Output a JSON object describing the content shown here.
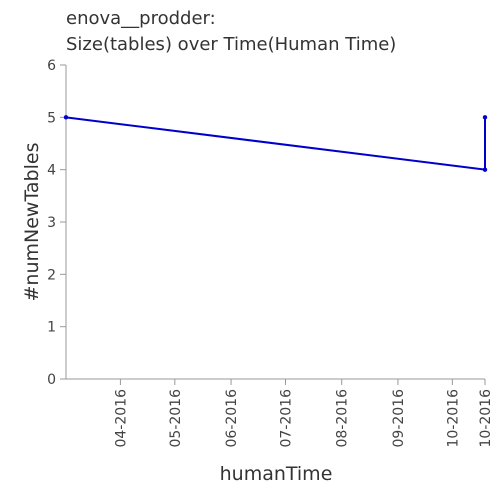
{
  "colors": {
    "line": "#0000cc",
    "axis": "#999999",
    "text": "#333333"
  },
  "chart_data": {
    "type": "line",
    "title_lines": [
      "enova__prodder:",
      "Size(tables) over Time(Human Time)"
    ],
    "xlabel": "humanTime",
    "ylabel": "#numNewTables",
    "x_ticks": [
      "04-2016",
      "05-2016",
      "06-2016",
      "07-2016",
      "08-2016",
      "09-2016",
      "10-2016",
      "10-2016"
    ],
    "x_tick_dates": [
      "2016-04-01",
      "2016-05-01",
      "2016-06-01",
      "2016-07-01",
      "2016-08-01",
      "2016-09-01",
      "2016-10-01",
      "2016-10-19"
    ],
    "xlim": [
      "2016-03-02",
      "2016-10-19"
    ],
    "y_ticks": [
      0,
      1,
      2,
      3,
      4,
      5,
      6
    ],
    "ylim": [
      0,
      6
    ],
    "grid": false,
    "series": [
      {
        "points": [
          {
            "x": "2016-03-02",
            "y": 5
          },
          {
            "x": "2016-10-19",
            "y": 4
          },
          {
            "x": "2016-10-19",
            "y": 5
          }
        ]
      }
    ]
  }
}
